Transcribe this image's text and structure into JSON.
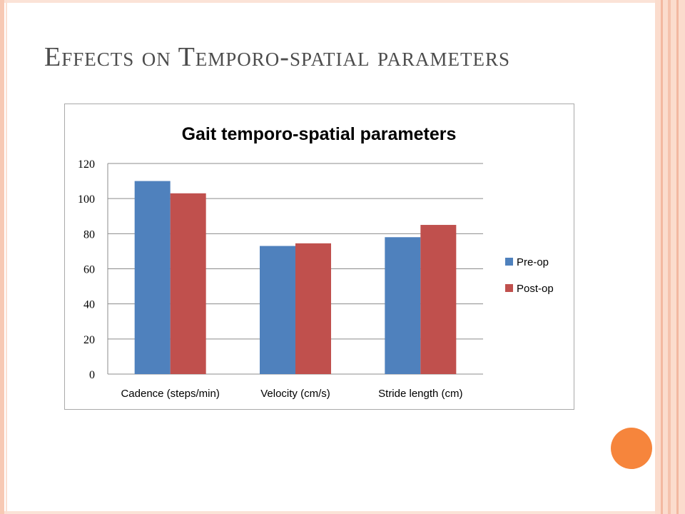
{
  "slide": {
    "title": "Effects on Temporo-spatial parameters",
    "colors": {
      "accent_circle": "#f6853c",
      "border_band": "#fbdccd",
      "title_text": "#4c4c4c"
    }
  },
  "chart_data": {
    "type": "bar",
    "title": "Gait temporo-spatial parameters",
    "categories": [
      "Cadence (steps/min)",
      "Velocity (cm/s)",
      "Stride length (cm)"
    ],
    "series": [
      {
        "name": "Pre-op",
        "color": "#4f81bd",
        "values": [
          110,
          73,
          78
        ]
      },
      {
        "name": "Post-op",
        "color": "#c0504d",
        "values": [
          103,
          74.5,
          85
        ]
      }
    ],
    "ylim": [
      0,
      120
    ],
    "yticks": [
      0,
      20,
      40,
      60,
      80,
      100,
      120
    ],
    "grid": true,
    "legend": "right",
    "xlabel": "",
    "ylabel": ""
  }
}
